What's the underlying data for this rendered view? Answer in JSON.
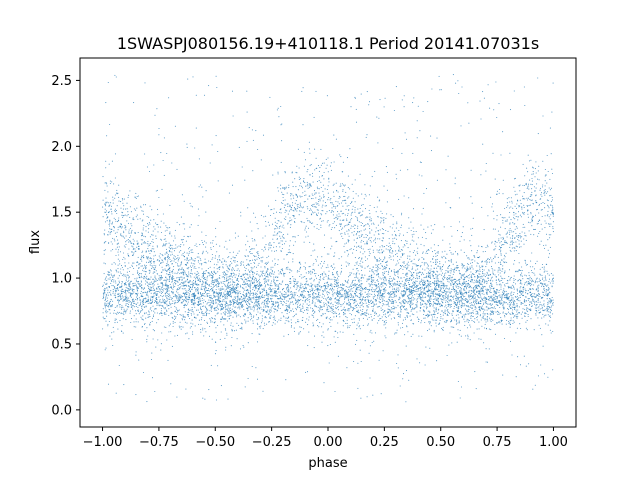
{
  "chart_data": {
    "type": "scatter",
    "title": "1SWASPJ080156.19+410118.1 Period 20141.07031s",
    "xlabel": "phase",
    "ylabel": "flux",
    "xlim": [
      -1.1,
      1.1
    ],
    "ylim": [
      -0.13,
      2.67
    ],
    "x_ticks": [
      -1.0,
      -0.75,
      -0.5,
      -0.25,
      0.0,
      0.25,
      0.5,
      0.75,
      1.0
    ],
    "x_tick_labels": [
      "−1.00",
      "−0.75",
      "−0.50",
      "−0.25",
      "0.00",
      "0.25",
      "0.50",
      "0.75",
      "1.00"
    ],
    "y_ticks": [
      0.0,
      0.5,
      1.0,
      1.5,
      2.0,
      2.5
    ],
    "y_tick_labels": [
      "0.0",
      "0.5",
      "1.0",
      "1.5",
      "2.0",
      "2.5"
    ],
    "grid": false,
    "marker_color": "#1f77b4",
    "series": [
      {
        "x_range": [
          -1.0,
          1.0
        ],
        "envelope_phase": [
          -1.0,
          -0.9,
          -0.8,
          -0.7,
          -0.6,
          -0.5,
          -0.4,
          -0.3,
          -0.2,
          -0.1,
          0.0,
          0.1,
          0.2,
          0.3,
          0.4,
          0.5,
          0.6,
          0.7,
          0.8,
          0.9,
          1.0
        ],
        "baseline_flux": [
          0.88,
          0.88,
          0.88,
          0.87,
          0.87,
          0.86,
          0.86,
          0.87,
          0.87,
          0.88,
          0.87,
          0.87,
          0.88,
          0.88,
          0.88,
          0.87,
          0.87,
          0.86,
          0.86,
          0.87,
          0.88
        ],
        "peak_branch_flux": [
          1.5,
          1.35,
          1.22,
          1.12,
          1.03,
          0.97,
          0.95,
          1.0,
          1.45,
          1.65,
          1.55,
          1.42,
          1.28,
          1.15,
          1.05,
          0.98,
          0.95,
          1.0,
          1.35,
          1.55,
          1.5
        ]
      }
    ]
  }
}
